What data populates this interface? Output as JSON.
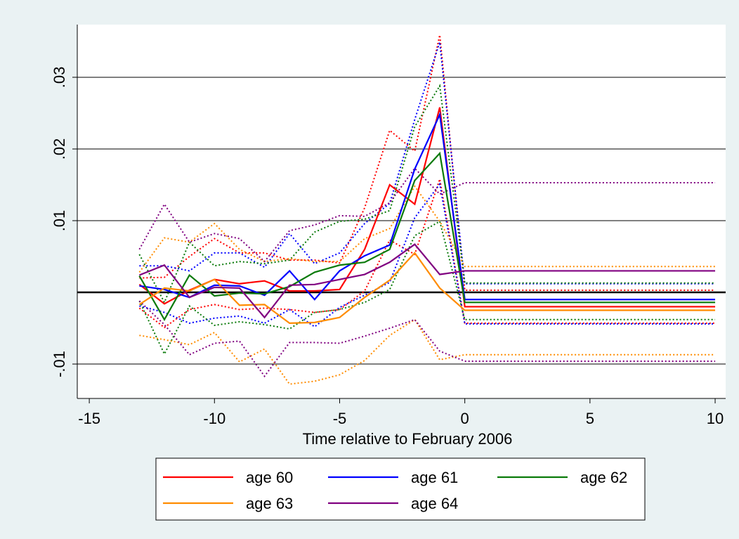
{
  "chart_data": {
    "type": "line",
    "xlabel": "Time relative to February 2006",
    "x": [
      -13,
      -12,
      -11,
      -10,
      -9,
      -8,
      -7,
      -6,
      -5,
      -4,
      -3,
      -2,
      -1,
      0,
      10
    ],
    "xlim": [
      -15.48,
      10.42
    ],
    "xticks": [
      -15,
      -10,
      -5,
      0,
      5,
      10
    ],
    "ylim": [
      -0.0148,
      0.03735
    ],
    "yticks": [
      {
        "value": -0.01,
        "label": "-.01"
      },
      {
        "value": 0.01,
        "label": ".01"
      },
      {
        "value": 0.02,
        "label": ".02"
      },
      {
        "value": 0.03,
        "label": ".03"
      }
    ],
    "grid": true,
    "hline": 0,
    "legend": "bottom",
    "series": [
      {
        "name": "age 60",
        "color": "#ff0000",
        "values": [
          0.0011,
          -0.0016,
          0.0003,
          0.0018,
          0.0012,
          0.0016,
          0.0002,
          0.0002,
          0.0004,
          0.006,
          0.015,
          0.0123,
          0.0258,
          -0.002,
          -0.002
        ],
        "upper": [
          0.002,
          0.0021,
          0.005,
          0.0075,
          0.0055,
          0.0055,
          0.0045,
          0.0045,
          0.0041,
          0.0118,
          0.0226,
          0.0197,
          0.0359,
          0.0003,
          0.0003
        ],
        "lower": [
          -0.0022,
          -0.0049,
          -0.0024,
          -0.0017,
          -0.0024,
          -0.0022,
          -0.0024,
          -0.0028,
          -0.0024,
          0.0002,
          0.0073,
          0.0053,
          0.0158,
          -0.0043,
          -0.0043
        ]
      },
      {
        "name": "age 61",
        "color": "#0000ff",
        "values": [
          0.0009,
          0.0004,
          -0.0007,
          0.001,
          0.0009,
          -0.0004,
          0.003,
          -0.001,
          0.003,
          0.0051,
          0.0066,
          0.0172,
          0.0248,
          -0.001,
          -0.001
        ],
        "upper": [
          0.0037,
          0.0037,
          0.003,
          0.0055,
          0.0055,
          0.0035,
          0.0082,
          0.004,
          0.0055,
          0.0096,
          0.0124,
          0.0241,
          0.0349,
          0.0012,
          0.0012
        ],
        "lower": [
          -0.0019,
          -0.0028,
          -0.0043,
          -0.0036,
          -0.0033,
          -0.0043,
          -0.0024,
          -0.0048,
          -0.0021,
          -0.0004,
          0.0014,
          0.0104,
          0.0151,
          -0.0044,
          -0.0044
        ]
      },
      {
        "name": "age 62",
        "color": "#0a7a0a",
        "values": [
          0.0023,
          -0.0038,
          0.0024,
          -0.0005,
          -0.0001,
          -0.0002,
          0.0008,
          0.0028,
          0.0038,
          0.0042,
          0.006,
          0.0156,
          0.0194,
          -0.0014,
          -0.0014
        ],
        "upper": [
          0.0053,
          -0.0014,
          0.007,
          0.0037,
          0.0043,
          0.004,
          0.0045,
          0.0084,
          0.0099,
          0.0102,
          0.0114,
          0.0231,
          0.0288,
          0.0013,
          0.0013
        ],
        "lower": [
          -0.0012,
          -0.0086,
          -0.0019,
          -0.0046,
          -0.0041,
          -0.0045,
          -0.0051,
          -0.0028,
          -0.0024,
          -0.0014,
          0.0004,
          0.0079,
          0.0099,
          -0.0038,
          -0.0038
        ]
      },
      {
        "name": "age 63",
        "color": "#ff8c00",
        "values": [
          -0.0017,
          0.0006,
          0.0002,
          0.0018,
          -0.0018,
          -0.0017,
          -0.0043,
          -0.0042,
          -0.0035,
          -0.0007,
          0.0017,
          0.0055,
          0.0006,
          -0.0025,
          -0.0025
        ],
        "upper": [
          0.0028,
          0.0076,
          0.007,
          0.0096,
          0.006,
          0.0043,
          0.0047,
          0.0043,
          0.0043,
          0.0075,
          0.0089,
          0.0148,
          0.0099,
          0.0036,
          0.0036
        ],
        "lower": [
          -0.006,
          -0.0066,
          -0.0073,
          -0.0056,
          -0.0097,
          -0.0079,
          -0.0128,
          -0.0124,
          -0.0115,
          -0.0095,
          -0.006,
          -0.0038,
          -0.0094,
          -0.0087,
          -0.0087
        ]
      },
      {
        "name": "age 64",
        "color": "#800080",
        "values": [
          0.0024,
          0.0038,
          -0.0007,
          0.0007,
          0.0006,
          -0.0035,
          0.001,
          0.0011,
          0.0018,
          0.0025,
          0.0042,
          0.0067,
          0.0025,
          0.003,
          0.003
        ],
        "upper": [
          0.006,
          0.0123,
          0.007,
          0.0082,
          0.0075,
          0.0043,
          0.0086,
          0.0094,
          0.0107,
          0.0106,
          0.0125,
          0.0173,
          0.0137,
          0.0153,
          0.0153
        ],
        "lower": [
          -0.0012,
          -0.0045,
          -0.0087,
          -0.0071,
          -0.0068,
          -0.0117,
          -0.007,
          -0.007,
          -0.0071,
          -0.0061,
          -0.005,
          -0.0038,
          -0.0082,
          -0.0096,
          -0.0096
        ]
      }
    ]
  }
}
